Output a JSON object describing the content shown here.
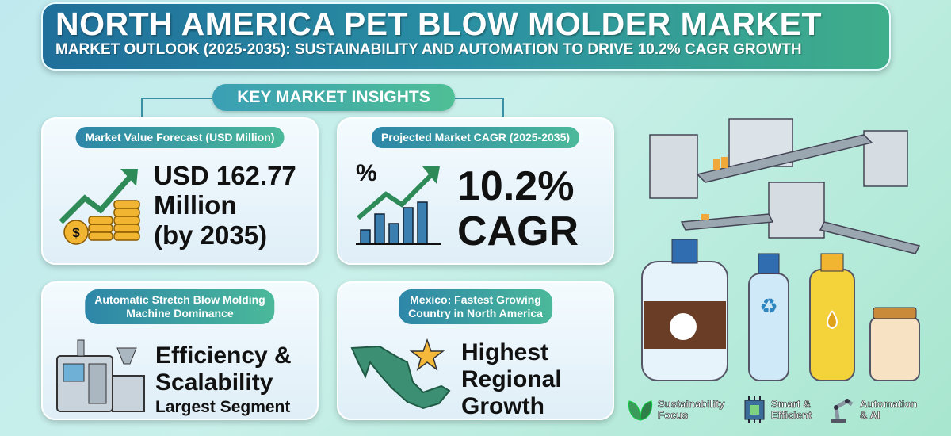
{
  "header": {
    "title": "NORTH AMERICA PET BLOW MOLDER MARKET",
    "subtitle": "MARKET OUTLOOK (2025-2035): SUSTAINABILITY AND AUTOMATION TO DRIVE 10.2% CAGR GROWTH"
  },
  "section_label": "KEY MARKET INSIGHTS",
  "cards": [
    {
      "pill": "Market Value Forecast (USD Million)",
      "line1": "USD 162.77",
      "line2": "Million",
      "line3": "(by 2035)"
    },
    {
      "pill": "Projected Market CAGR (2025-2035)",
      "line1": "10.2%",
      "line2": "CAGR"
    },
    {
      "pill_line1": "Automatic Stretch Blow Molding",
      "pill_line2": "Machine Dominance",
      "line1": "Efficiency &",
      "line2": "Scalability",
      "line3": "Largest Segment"
    },
    {
      "pill_line1": "Mexico: Fastest Growing",
      "pill_line2": "Country in North America",
      "line1": "Highest",
      "line2": "Regional",
      "line3": "Growth"
    }
  ],
  "features": [
    {
      "icon": "leaf-icon",
      "line1": "Sustainability",
      "line2": "Focus"
    },
    {
      "icon": "chip-icon",
      "line1": "Smart &",
      "line2": "Efficient"
    },
    {
      "icon": "robot-arm-icon",
      "line1": "Automation",
      "line2": "& AI"
    }
  ],
  "colors": {
    "header_start": "#1f6f9a",
    "header_end": "#3fae8a",
    "accent": "#4fbf95"
  }
}
